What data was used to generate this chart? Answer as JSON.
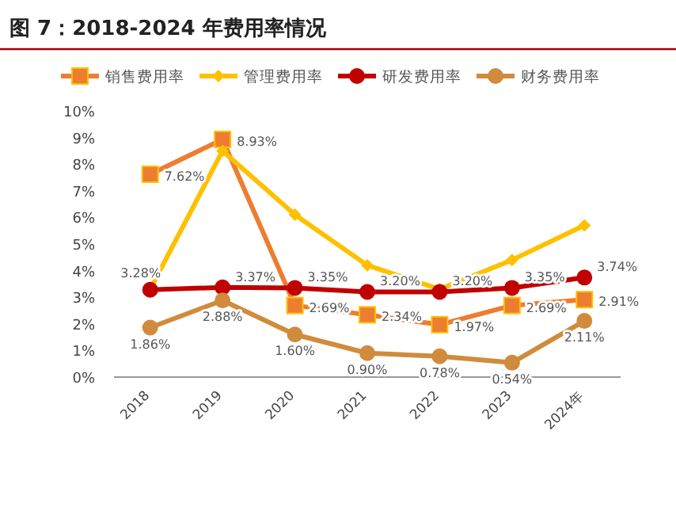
{
  "chart_data": {
    "type": "line",
    "title": "图 7：2018-2024 年费用率情况",
    "categories": [
      "2018",
      "2019",
      "2020",
      "2021",
      "2022",
      "2023",
      "2024年"
    ],
    "ylim": [
      0,
      10
    ],
    "yticks": [
      {
        "value": 0,
        "label": "0%"
      },
      {
        "value": 1,
        "label": "1%"
      },
      {
        "value": 2,
        "label": "2%"
      },
      {
        "value": 3,
        "label": "3%"
      },
      {
        "value": 4,
        "label": "4%"
      },
      {
        "value": 5,
        "label": "5%"
      },
      {
        "value": 6,
        "label": "6%"
      },
      {
        "value": 7,
        "label": "7%"
      },
      {
        "value": 8,
        "label": "8%"
      },
      {
        "value": 9,
        "label": "9%"
      },
      {
        "value": 10,
        "label": "10%"
      }
    ],
    "legend": "top",
    "grid": false,
    "series": [
      {
        "name": "销售费用率",
        "color": "#ed7d31",
        "marker": "square",
        "values": [
          7.62,
          8.93,
          2.69,
          2.34,
          1.97,
          2.69,
          2.91
        ],
        "value_labels": [
          "7.62%",
          "8.93%",
          "2.69%",
          "2.34%",
          "1.97%",
          "2.69%",
          "2.91%"
        ]
      },
      {
        "name": "管理费用率",
        "color": "#ffc000",
        "marker": "diamond",
        "values": [
          3.3,
          8.5,
          6.1,
          4.2,
          3.3,
          4.4,
          5.7
        ]
      },
      {
        "name": "研发费用率",
        "color": "#c00000",
        "marker": "circle",
        "values": [
          3.28,
          3.37,
          3.35,
          3.2,
          3.2,
          3.35,
          3.74
        ],
        "value_labels": [
          "3.28%",
          "3.37%",
          "3.35%",
          "3.20%",
          "3.20%",
          "3.35%",
          "3.74%"
        ]
      },
      {
        "name": "财务费用率",
        "color": "#d08b3c",
        "marker": "circle",
        "values": [
          1.86,
          2.88,
          1.6,
          0.9,
          0.78,
          0.54,
          2.11
        ],
        "value_labels": [
          "1.86%",
          "2.88%",
          "1.60%",
          "0.90%",
          "0.78%",
          "0.54%",
          "2.11%"
        ]
      }
    ]
  }
}
